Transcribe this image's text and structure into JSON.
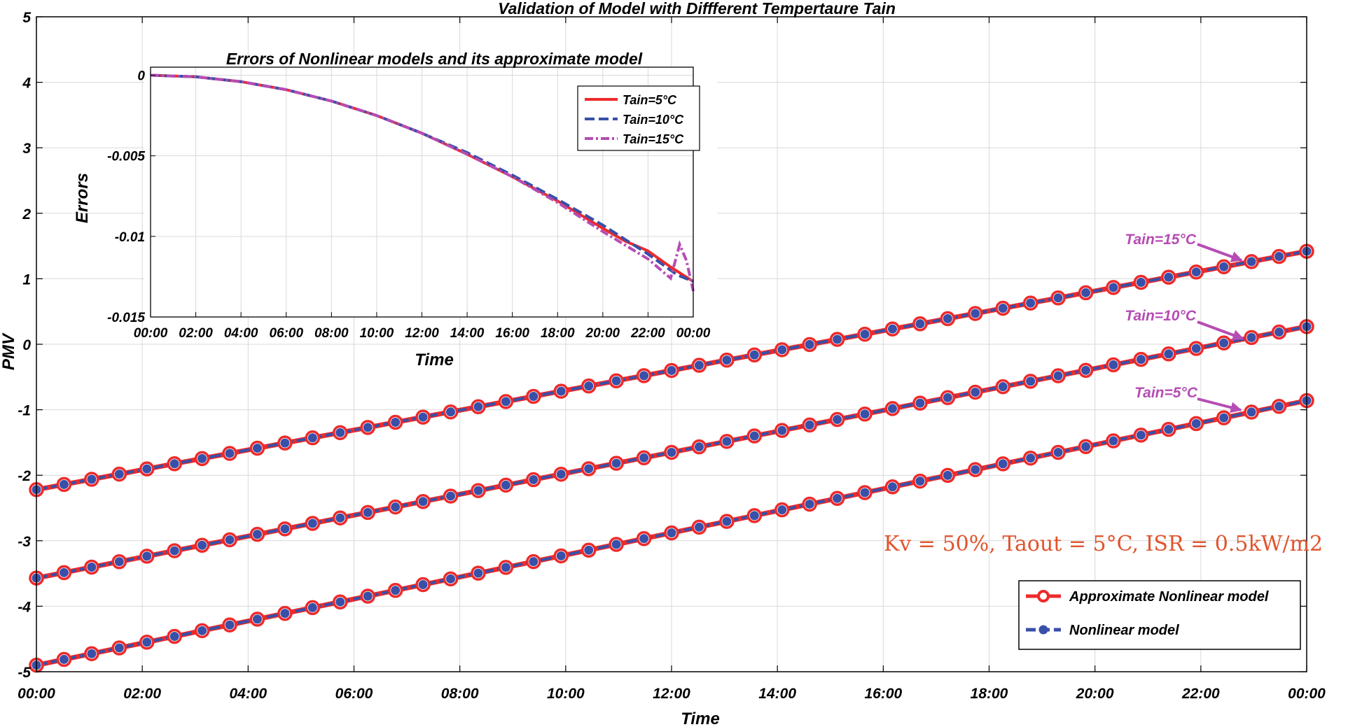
{
  "chart_data": [
    {
      "type": "line",
      "title": "Validation of Model with Diffferent Tempertaure Tain",
      "xlabel": "Time",
      "ylabel": "PMV",
      "ylim": [
        -5,
        5
      ],
      "yticks": [
        "5",
        "4",
        "3",
        "2",
        "1",
        "0",
        "-1",
        "-2",
        "-3",
        "-4",
        "-5"
      ],
      "xticks": [
        "00:00",
        "02:00",
        "04:00",
        "06:00",
        "08:00",
        "10:00",
        "12:00",
        "14:00",
        "16:00",
        "18:00",
        "20:00",
        "22:00",
        "00:00"
      ],
      "x_hours": [
        0,
        24
      ],
      "grid": true,
      "series": [
        {
          "name": "Approximate Nonlinear model",
          "style": "red solid, circle markers",
          "color": "#ee2a2a"
        },
        {
          "name": "Nonlinear model",
          "style": "blue dashed, filled circle markers",
          "color": "#3850a8"
        }
      ],
      "groups": [
        {
          "label": "Tain=5°C",
          "start": -4.9,
          "end": -0.86
        },
        {
          "label": "Tain=10°C",
          "start": -3.57,
          "end": 0.27
        },
        {
          "label": "Tain=15°C",
          "start": -2.22,
          "end": 1.42
        }
      ],
      "markers_per_line": 47,
      "legend_position": "bottom-right",
      "parameters_text": "Kv = 50%, Taout = 5°C, ISR = 0.5kW/m2"
    },
    {
      "type": "line",
      "title": "Errors of Nonlinear models and its approximate model",
      "xlabel": "Time",
      "ylabel": "Errors",
      "ylim": [
        -0.015,
        0.0005
      ],
      "yticks": [
        "0",
        "-0.005",
        "-0.01",
        "-0.015"
      ],
      "xticks": [
        "00:00",
        "02:00",
        "04:00",
        "06:00",
        "08:00",
        "10:00",
        "12:00",
        "14:00",
        "16:00",
        "18:00",
        "20:00",
        "22:00",
        "00:00"
      ],
      "grid": true,
      "legend_position": "top-right",
      "series": [
        {
          "name": "Tain=5°C",
          "color": "#ee2a2a",
          "dash": "solid",
          "x": [
            0,
            2,
            4,
            6,
            8,
            10,
            12,
            14,
            16,
            18,
            20,
            21,
            22,
            23,
            24
          ],
          "y": [
            0.0,
            -0.0001,
            -0.0004,
            -0.0009,
            -0.0016,
            -0.0025,
            -0.0036,
            -0.0049,
            -0.0063,
            -0.0078,
            -0.0095,
            -0.0103,
            -0.0109,
            -0.0119,
            -0.0128
          ]
        },
        {
          "name": "Tain=10°C",
          "color": "#3850a8",
          "dash": "dashed",
          "x": [
            0,
            2,
            4,
            6,
            8,
            10,
            12,
            14,
            16,
            18,
            20,
            22,
            23.3,
            24
          ],
          "y": [
            0.0,
            -0.0001,
            -0.0004,
            -0.0009,
            -0.0016,
            -0.0025,
            -0.0036,
            -0.0048,
            -0.0062,
            -0.0077,
            -0.0093,
            -0.0111,
            -0.0124,
            -0.0128
          ]
        },
        {
          "name": "Tain=15°C",
          "color": "#b64cb4",
          "dash": "dash-dot",
          "x": [
            0,
            2,
            4,
            6,
            8,
            10,
            12,
            14,
            16,
            18,
            20,
            22,
            23.0,
            23.4,
            23.7,
            24
          ],
          "y": [
            0.0,
            -0.0001,
            -0.0004,
            -0.0009,
            -0.0016,
            -0.0025,
            -0.0036,
            -0.0049,
            -0.0063,
            -0.0079,
            -0.0097,
            -0.0114,
            -0.0126,
            -0.0105,
            -0.0115,
            -0.0134
          ]
        }
      ]
    }
  ]
}
